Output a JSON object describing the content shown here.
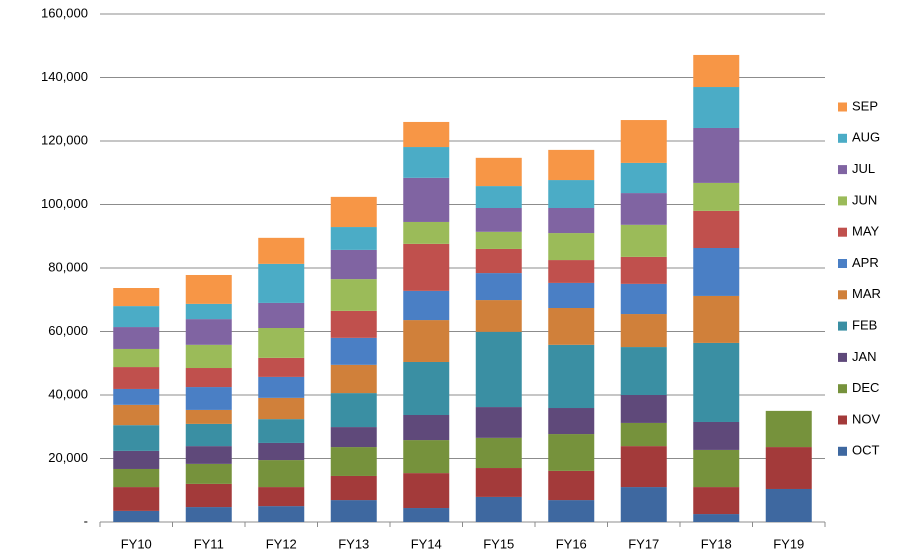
{
  "chart_data": {
    "type": "stacked_bar",
    "categories": [
      "FY10",
      "FY11",
      "FY12",
      "FY13",
      "FY14",
      "FY15",
      "FY16",
      "FY17",
      "FY18",
      "FY19"
    ],
    "series": [
      {
        "name": "OCT",
        "color": "#3e68a0",
        "values": [
          3500,
          4700,
          5000,
          6900,
          4400,
          7900,
          6900,
          11000,
          2500,
          10400
        ]
      },
      {
        "name": "NOV",
        "color": "#a33a3a",
        "values": [
          7500,
          7300,
          6000,
          7600,
          11000,
          9100,
          9200,
          12900,
          8500,
          13200
        ]
      },
      {
        "name": "DEC",
        "color": "#76923c",
        "values": [
          5700,
          6300,
          8500,
          9100,
          10400,
          9500,
          11600,
          7300,
          11700,
          11400
        ]
      },
      {
        "name": "JAN",
        "color": "#5f497a",
        "values": [
          5700,
          5600,
          5400,
          6300,
          7900,
          9700,
          8200,
          8800,
          8800,
          null
        ]
      },
      {
        "name": "FEB",
        "color": "#3a8fa3",
        "values": [
          8100,
          7000,
          7500,
          10700,
          16700,
          23700,
          19900,
          15100,
          24900,
          null
        ]
      },
      {
        "name": "MAR",
        "color": "#d0803a",
        "values": [
          6400,
          4400,
          6700,
          8900,
          13200,
          10000,
          11600,
          10400,
          14800,
          null
        ]
      },
      {
        "name": "APR",
        "color": "#4a7fc5",
        "values": [
          5000,
          7200,
          6600,
          8500,
          9200,
          8500,
          7900,
          9500,
          15100,
          null
        ]
      },
      {
        "name": "MAY",
        "color": "#c0504d",
        "values": [
          6900,
          6000,
          6000,
          8500,
          14800,
          7600,
          7200,
          8500,
          11700,
          null
        ]
      },
      {
        "name": "JUN",
        "color": "#9bbb59",
        "values": [
          5700,
          7300,
          9400,
          10000,
          6900,
          5400,
          8500,
          10100,
          8800,
          null
        ]
      },
      {
        "name": "JUL",
        "color": "#8064a2",
        "values": [
          6900,
          8100,
          7900,
          9200,
          13900,
          7500,
          7900,
          10000,
          17300,
          null
        ]
      },
      {
        "name": "AUG",
        "color": "#4bacc6",
        "values": [
          6600,
          4800,
          12300,
          7200,
          9700,
          6900,
          8800,
          9500,
          12900,
          null
        ]
      },
      {
        "name": "SEP",
        "color": "#f79646",
        "values": [
          5700,
          9100,
          8200,
          9500,
          7900,
          8900,
          9500,
          13500,
          10100,
          null
        ]
      }
    ],
    "ylim": [
      0,
      160000
    ],
    "yticks": [
      {
        "value": 0,
        "label": "-"
      },
      {
        "value": 20000,
        "label": "20,000"
      },
      {
        "value": 40000,
        "label": "40,000"
      },
      {
        "value": 60000,
        "label": "60,000"
      },
      {
        "value": 80000,
        "label": "80,000"
      },
      {
        "value": 100000,
        "label": "100,000"
      },
      {
        "value": 120000,
        "label": "120,000"
      },
      {
        "value": 140000,
        "label": "140,000"
      },
      {
        "value": 160000,
        "label": "160,000"
      }
    ],
    "grid": true,
    "legend": "right"
  }
}
